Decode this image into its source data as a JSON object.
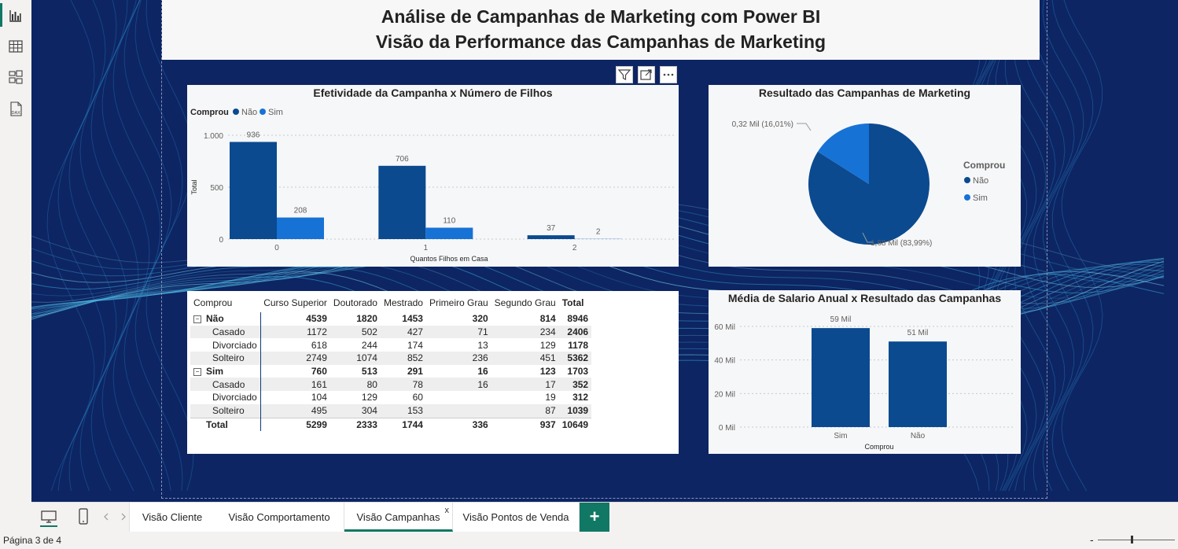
{
  "header": {
    "title_line1": "Análise de Campanhas de Marketing com Power BI",
    "title_line2": "Visão da Performance das Campanhas de Marketing"
  },
  "left_nav": [
    "report-view-icon",
    "table-view-icon",
    "model-view-icon",
    "dax-query-icon"
  ],
  "visual_header": [
    "filter-icon",
    "focus-mode-icon",
    "more-options-icon"
  ],
  "chart_filhos": {
    "title": "Efetividade da Campanha x Número de Filhos",
    "legend_title": "Comprou"
  },
  "chart_resultado": {
    "title": "Resultado das Campanhas de Marketing",
    "legend_title": "Comprou"
  },
  "chart_salario": {
    "title": "Média de Salario Anual x Resultado das Campanhas"
  },
  "chart_data": [
    {
      "type": "bar",
      "title": "Efetividade da Campanha x Número de Filhos",
      "xlabel": "Quantos Filhos em Casa",
      "ylabel": "Total",
      "categories": [
        "0",
        "1",
        "2"
      ],
      "series": [
        {
          "name": "Não",
          "color": "#0b4a8f",
          "values": [
            936,
            706,
            37
          ]
        },
        {
          "name": "Sim",
          "color": "#1772d6",
          "values": [
            208,
            110,
            2
          ]
        }
      ],
      "ylim": [
        0,
        1000
      ],
      "yticks": [
        0,
        500,
        1000
      ],
      "ytick_labels": [
        "0",
        "500",
        "1.000"
      ],
      "legend_title": "Comprou",
      "legend_position": "top-left",
      "grid": true
    },
    {
      "type": "pie",
      "title": "Resultado das Campanhas de Marketing",
      "labels": [
        "Não",
        "Sim"
      ],
      "values": [
        83.99,
        16.01
      ],
      "colors": [
        "#0b4a8f",
        "#1772d6"
      ],
      "data_labels": [
        "1,68 Mil (83,99%)",
        "0,32 Mil (16,01%)"
      ],
      "legend_title": "Comprou",
      "legend_position": "right"
    },
    {
      "type": "bar",
      "title": "Média de Salario Anual x Resultado das Campanhas",
      "xlabel": "Comprou",
      "ylabel": "",
      "categories": [
        "Sim",
        "Não"
      ],
      "values": [
        59,
        51
      ],
      "data_labels": [
        "59 Mil",
        "51 Mil"
      ],
      "color": "#0b4a8f",
      "ylim": [
        0,
        60
      ],
      "yticks": [
        0,
        20,
        40,
        60
      ],
      "ytick_labels": [
        "0 Mil",
        "20 Mil",
        "40 Mil",
        "60 Mil"
      ],
      "grid": true
    }
  ],
  "matrix": {
    "columns": [
      "Comprou",
      "Curso Superior",
      "Doutorado",
      "Mestrado",
      "Primeiro Grau",
      "Segundo Grau",
      "Total"
    ],
    "rows": [
      {
        "label": "Não",
        "level": 0,
        "expander": "⊟",
        "cells": [
          "4539",
          "1820",
          "1453",
          "320",
          "814",
          "8946"
        ]
      },
      {
        "label": "Casado",
        "level": 1,
        "cells": [
          "1172",
          "502",
          "427",
          "71",
          "234",
          "2406"
        ]
      },
      {
        "label": "Divorciado",
        "level": 1,
        "cells": [
          "618",
          "244",
          "174",
          "13",
          "129",
          "1178"
        ]
      },
      {
        "label": "Solteiro",
        "level": 1,
        "cells": [
          "2749",
          "1074",
          "852",
          "236",
          "451",
          "5362"
        ]
      },
      {
        "label": "Sim",
        "level": 0,
        "expander": "⊟",
        "cells": [
          "760",
          "513",
          "291",
          "16",
          "123",
          "1703"
        ]
      },
      {
        "label": "Casado",
        "level": 1,
        "cells": [
          "161",
          "80",
          "78",
          "16",
          "17",
          "352"
        ]
      },
      {
        "label": "Divorciado",
        "level": 1,
        "cells": [
          "104",
          "129",
          "60",
          "",
          "19",
          "312"
        ]
      },
      {
        "label": "Solteiro",
        "level": 1,
        "cells": [
          "495",
          "304",
          "153",
          "",
          "87",
          "1039"
        ]
      }
    ],
    "total": {
      "label": "Total",
      "cells": [
        "5299",
        "2333",
        "1744",
        "336",
        "937",
        "10649"
      ]
    }
  },
  "tabs": {
    "items": [
      "Visão Cliente",
      "Visão Comportamento",
      "Visão Campanhas",
      "Visão Pontos de Venda"
    ],
    "active": "Visão Campanhas",
    "close": "x",
    "add": "+"
  },
  "status": {
    "page": "Página 3 de 4",
    "zoom_minus": "-"
  },
  "colors": {
    "report_background": "#0d2563",
    "accent": "#117865",
    "series_nao": "#0b4a8f",
    "series_sim": "#1772d6"
  }
}
